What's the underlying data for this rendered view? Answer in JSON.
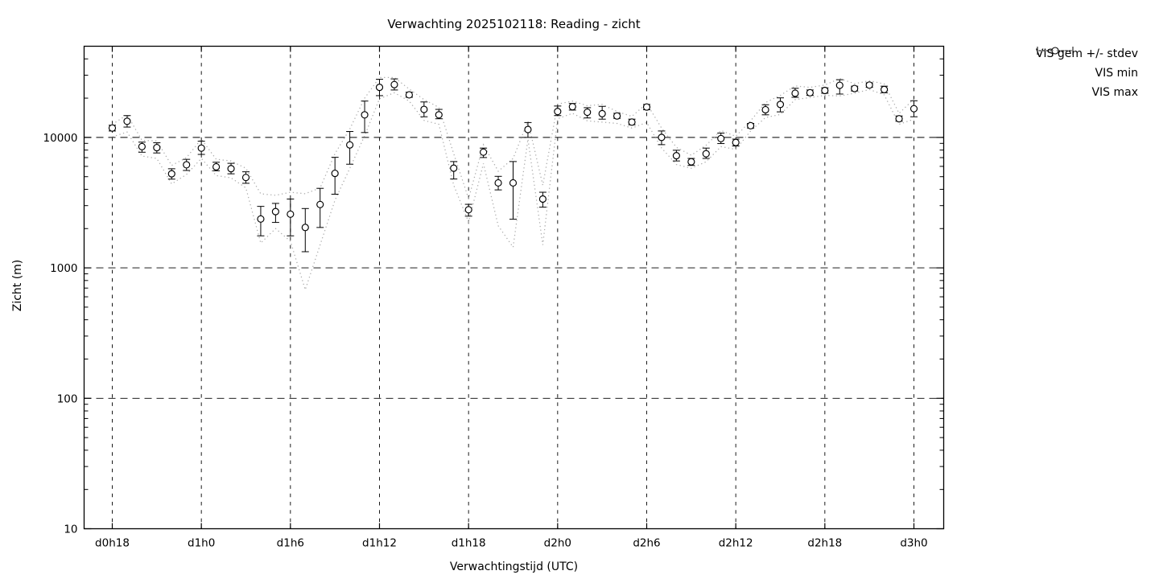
{
  "title": "Verwachting 2025102118: Reading - zicht",
  "axes": {
    "xlabel": "Verwachtingstijd (UTC)",
    "ylabel": "Zicht (m)",
    "y_tick_labels": [
      "10",
      "100",
      "1000",
      "10000"
    ],
    "x_tick_labels": [
      "d0h18",
      "d1h0",
      "d1h6",
      "d1h12",
      "d1h18",
      "d2h0",
      "d2h6",
      "d2h12",
      "d2h18",
      "d3h0"
    ]
  },
  "legend": {
    "items": [
      {
        "label": "VIS gem +/- stdev",
        "style": "errorbar"
      },
      {
        "label": "VIS min",
        "style": "dotted"
      },
      {
        "label": "VIS max",
        "style": "dotted"
      }
    ]
  },
  "colors": {
    "axis": "#000000",
    "marker_stroke": "#000000",
    "marker_fill": "#ffffff",
    "minmax_dotted": "#ababab"
  },
  "chart_data": {
    "type": "line",
    "subtype": "errorbars-with-min-max-envelope",
    "title": "Verwachting 2025102118: Reading - zicht",
    "xlabel": "Verwachtingstijd (UTC)",
    "ylabel": "Zicht (m)",
    "yscale": "log",
    "ylim": [
      10,
      50000
    ],
    "y_major_ticks": [
      10,
      100,
      1000,
      10000
    ],
    "x_tick_every_hours": 6,
    "x_tick_labels": [
      "d0h18",
      "d1h0",
      "d1h6",
      "d1h12",
      "d1h18",
      "d2h0",
      "d2h6",
      "d2h12",
      "d2h18",
      "d3h0"
    ],
    "grid": true,
    "legend_position": "outside-top-right",
    "series_meaning": {
      "mean": "VIS gem",
      "lo": "mean - stdev",
      "hi": "mean + stdev",
      "min": "VIS min",
      "max": "VIS max"
    },
    "points": [
      {
        "t": "d0h18",
        "mean": 11800,
        "lo": 11200,
        "hi": 12400,
        "min": 10100,
        "max": 12600
      },
      {
        "t": "d0h19",
        "mean": 13300,
        "lo": 12000,
        "hi": 14700,
        "min": 11000,
        "max": 14900
      },
      {
        "t": "d0h20",
        "mean": 8500,
        "lo": 7700,
        "hi": 9200,
        "min": 7200,
        "max": 9500
      },
      {
        "t": "d0h21",
        "mean": 8350,
        "lo": 7600,
        "hi": 9100,
        "min": 6900,
        "max": 9400
      },
      {
        "t": "d0h22",
        "mean": 5260,
        "lo": 4790,
        "hi": 5750,
        "min": 4400,
        "max": 6100
      },
      {
        "t": "d0h23",
        "mean": 6170,
        "lo": 5580,
        "hi": 6790,
        "min": 5200,
        "max": 7000
      },
      {
        "t": "d1h0",
        "mean": 8280,
        "lo": 7410,
        "hi": 9350,
        "min": 6900,
        "max": 9700
      },
      {
        "t": "d1h1",
        "mean": 5950,
        "lo": 5550,
        "hi": 6450,
        "min": 5100,
        "max": 6800
      },
      {
        "t": "d1h2",
        "mean": 5760,
        "lo": 5260,
        "hi": 6330,
        "min": 4900,
        "max": 6600
      },
      {
        "t": "d1h3",
        "mean": 4930,
        "lo": 4450,
        "hi": 5450,
        "min": 4100,
        "max": 5800
      },
      {
        "t": "d1h4",
        "mean": 2370,
        "lo": 1760,
        "hi": 2960,
        "min": 1550,
        "max": 3700
      },
      {
        "t": "d1h5",
        "mean": 2700,
        "lo": 2230,
        "hi": 3120,
        "min": 2000,
        "max": 3600
      },
      {
        "t": "d1h6",
        "mean": 2580,
        "lo": 1760,
        "hi": 3370,
        "min": 1600,
        "max": 3800
      },
      {
        "t": "d1h7",
        "mean": 2040,
        "lo": 1330,
        "hi": 2850,
        "min": 680,
        "max": 3700
      },
      {
        "t": "d1h8",
        "mean": 3060,
        "lo": 2040,
        "hi": 4070,
        "min": 1500,
        "max": 4100
      },
      {
        "t": "d1h9",
        "mean": 5300,
        "lo": 3670,
        "hi": 7040,
        "min": 3300,
        "max": 7500
      },
      {
        "t": "d1h10",
        "mean": 8760,
        "lo": 6230,
        "hi": 11100,
        "min": 5800,
        "max": 11600
      },
      {
        "t": "d1h11",
        "mean": 14900,
        "lo": 10900,
        "hi": 19000,
        "min": 10300,
        "max": 20000
      },
      {
        "t": "d1h12",
        "mean": 24200,
        "lo": 20900,
        "hi": 27900,
        "min": 19800,
        "max": 28800
      },
      {
        "t": "d1h13",
        "mean": 25400,
        "lo": 23100,
        "hi": 28100,
        "min": 22000,
        "max": 28800
      },
      {
        "t": "d1h14",
        "mean": 21200,
        "lo": 20300,
        "hi": 22200,
        "min": 19000,
        "max": 23500
      },
      {
        "t": "d1h15",
        "mean": 16400,
        "lo": 14400,
        "hi": 18700,
        "min": 13500,
        "max": 19500
      },
      {
        "t": "d1h16",
        "mean": 14900,
        "lo": 13900,
        "hi": 16400,
        "min": 12600,
        "max": 17000
      },
      {
        "t": "d1h17",
        "mean": 5810,
        "lo": 4800,
        "hi": 6530,
        "min": 4300,
        "max": 7500
      },
      {
        "t": "d1h18",
        "mean": 2790,
        "lo": 2490,
        "hi": 3070,
        "min": 2250,
        "max": 3400
      },
      {
        "t": "d1h19",
        "mean": 7710,
        "lo": 7010,
        "hi": 8280,
        "min": 6300,
        "max": 8800
      },
      {
        "t": "d1h20",
        "mean": 4480,
        "lo": 3960,
        "hi": 5030,
        "min": 2100,
        "max": 5500
      },
      {
        "t": "d1h21",
        "mean": 4480,
        "lo": 2360,
        "hi": 6530,
        "min": 1440,
        "max": 6900
      },
      {
        "t": "d1h22",
        "mean": 11500,
        "lo": 10000,
        "hi": 13000,
        "min": 9700,
        "max": 13300
      },
      {
        "t": "d1h23",
        "mean": 3370,
        "lo": 2920,
        "hi": 3800,
        "min": 1500,
        "max": 4300
      },
      {
        "t": "d2h0",
        "mean": 15800,
        "lo": 14700,
        "hi": 17400,
        "min": 13900,
        "max": 18000
      },
      {
        "t": "d2h1",
        "mean": 17200,
        "lo": 16200,
        "hi": 18200,
        "min": 15300,
        "max": 19000
      },
      {
        "t": "d2h2",
        "mean": 15600,
        "lo": 14100,
        "hi": 16900,
        "min": 13400,
        "max": 17500
      },
      {
        "t": "d2h3",
        "mean": 15200,
        "lo": 13800,
        "hi": 17300,
        "min": 13100,
        "max": 17900
      },
      {
        "t": "d2h4",
        "mean": 14600,
        "lo": 14000,
        "hi": 15300,
        "min": 12800,
        "max": 15800
      },
      {
        "t": "d2h5",
        "mean": 13100,
        "lo": 12500,
        "hi": 13800,
        "min": 11800,
        "max": 14500
      },
      {
        "t": "d2h6",
        "mean": 17100,
        "lo": 16300,
        "hi": 17900,
        "min": 13000,
        "max": 18200
      },
      {
        "t": "d2h7",
        "mean": 10000,
        "lo": 8800,
        "hi": 11200,
        "min": 8300,
        "max": 11800
      },
      {
        "t": "d2h8",
        "mean": 7240,
        "lo": 6600,
        "hi": 7970,
        "min": 6200,
        "max": 8400
      },
      {
        "t": "d2h9",
        "mean": 6500,
        "lo": 6100,
        "hi": 6900,
        "min": 5800,
        "max": 7300
      },
      {
        "t": "d2h10",
        "mean": 7500,
        "lo": 6900,
        "hi": 8280,
        "min": 6500,
        "max": 8700
      },
      {
        "t": "d2h11",
        "mean": 9800,
        "lo": 8970,
        "hi": 10800,
        "min": 8500,
        "max": 11300
      },
      {
        "t": "d2h12",
        "mean": 9140,
        "lo": 8600,
        "hi": 9700,
        "min": 8100,
        "max": 10200
      },
      {
        "t": "d2h13",
        "mean": 12300,
        "lo": 11800,
        "hi": 12800,
        "min": 11200,
        "max": 13400
      },
      {
        "t": "d2h14",
        "mean": 16300,
        "lo": 14900,
        "hi": 17800,
        "min": 14200,
        "max": 18500
      },
      {
        "t": "d2h15",
        "mean": 17900,
        "lo": 15700,
        "hi": 20100,
        "min": 15000,
        "max": 21000
      },
      {
        "t": "d2h16",
        "mean": 21800,
        "lo": 20300,
        "hi": 23800,
        "min": 19500,
        "max": 24800
      },
      {
        "t": "d2h17",
        "mean": 22000,
        "lo": 21000,
        "hi": 23100,
        "min": 20200,
        "max": 24200
      },
      {
        "t": "d2h18",
        "mean": 22900,
        "lo": 21800,
        "hi": 24000,
        "min": 21000,
        "max": 25200
      },
      {
        "t": "d2h19",
        "mean": 25100,
        "lo": 21500,
        "hi": 27700,
        "min": 20800,
        "max": 28300
      },
      {
        "t": "d2h20",
        "mean": 23700,
        "lo": 22700,
        "hi": 24700,
        "min": 21800,
        "max": 25800
      },
      {
        "t": "d2h21",
        "mean": 25200,
        "lo": 24200,
        "hi": 26200,
        "min": 23300,
        "max": 27200
      },
      {
        "t": "d2h22",
        "mean": 23300,
        "lo": 22000,
        "hi": 24700,
        "min": 21200,
        "max": 25700
      },
      {
        "t": "d2h23",
        "mean": 13900,
        "lo": 13300,
        "hi": 14600,
        "min": 12600,
        "max": 15300
      },
      {
        "t": "d3h0",
        "mean": 16600,
        "lo": 14400,
        "hi": 19100,
        "min": 13800,
        "max": 19700
      }
    ]
  }
}
